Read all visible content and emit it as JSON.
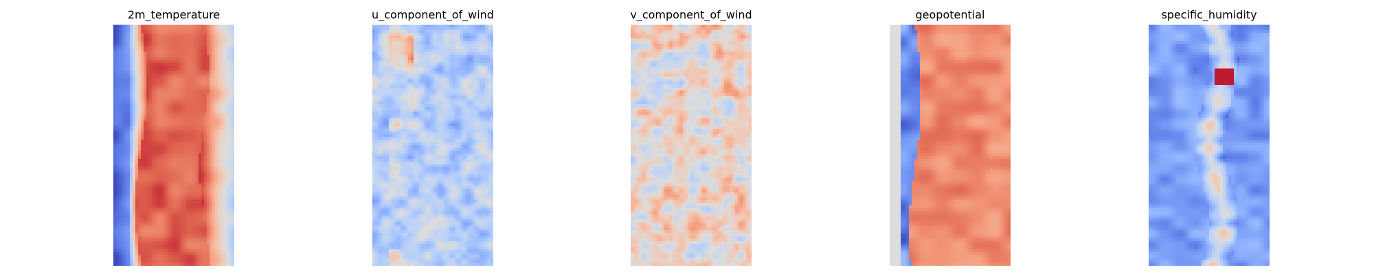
{
  "figure": {
    "colormap": "coolwarm",
    "axes_visible": false
  },
  "chart_data": [
    {
      "type": "heatmap",
      "title": "2m_temperature",
      "profile": "band",
      "colormap": "coolwarm"
    },
    {
      "type": "heatmap",
      "title": "u_component_of_wind",
      "profile": "noise_cool",
      "colormap": "coolwarm"
    },
    {
      "type": "heatmap",
      "title": "v_component_of_wind",
      "profile": "noise_warm",
      "colormap": "coolwarm"
    },
    {
      "type": "heatmap",
      "title": "geopotential",
      "profile": "band_wide",
      "colormap": "coolwarm"
    },
    {
      "type": "heatmap",
      "title": "specific_humidity",
      "profile": "spine",
      "colormap": "coolwarm"
    }
  ]
}
